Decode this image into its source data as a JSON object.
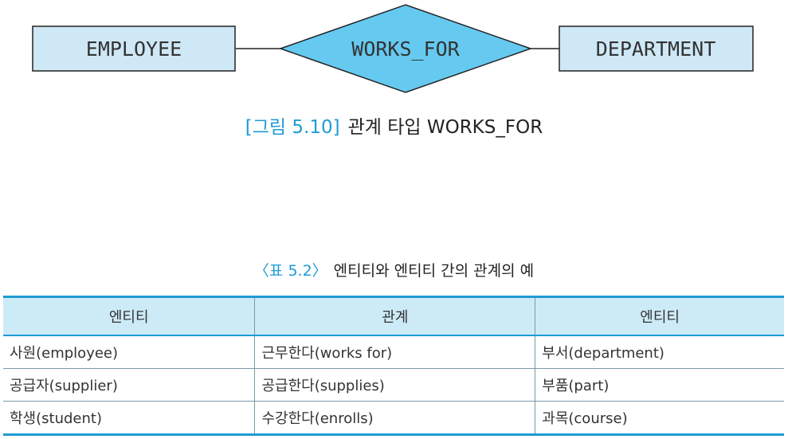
{
  "diagram": {
    "entity_left": "EMPLOYEE",
    "relationship": "WORKS_FOR",
    "entity_right": "DEPARTMENT",
    "colors": {
      "fill": "#cfe8f6",
      "diamond": "#66c9f0",
      "stroke": "#222222",
      "accent": "#1e9bd4"
    }
  },
  "figure_caption": {
    "number": "[그림 5.10]",
    "text": "관계 타입 WORKS_FOR"
  },
  "table_caption": {
    "number": "〈표 5.2〉",
    "text": "엔티티와 엔티티 간의 관계의 예"
  },
  "table": {
    "headers": [
      "엔티티",
      "관계",
      "엔티티"
    ],
    "rows": [
      [
        "사원(employee)",
        "근무한다(works for)",
        "부서(department)"
      ],
      [
        "공급자(supplier)",
        "공급한다(supplies)",
        "부품(part)"
      ],
      [
        "학생(student)",
        "수강한다(enrolls)",
        "과목(course)"
      ]
    ]
  }
}
